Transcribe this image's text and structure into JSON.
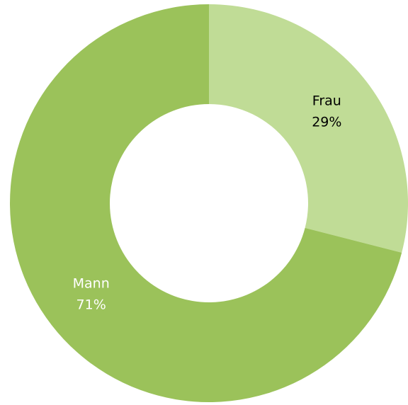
{
  "chart_data": {
    "type": "donut",
    "categories": [
      "Frau",
      "Mann"
    ],
    "values": [
      29,
      71
    ],
    "value_labels": [
      "29%",
      "71%"
    ],
    "colors": [
      "#c0dc96",
      "#9bc25a"
    ],
    "label_colors": [
      "#000000",
      "#ffffff"
    ]
  }
}
